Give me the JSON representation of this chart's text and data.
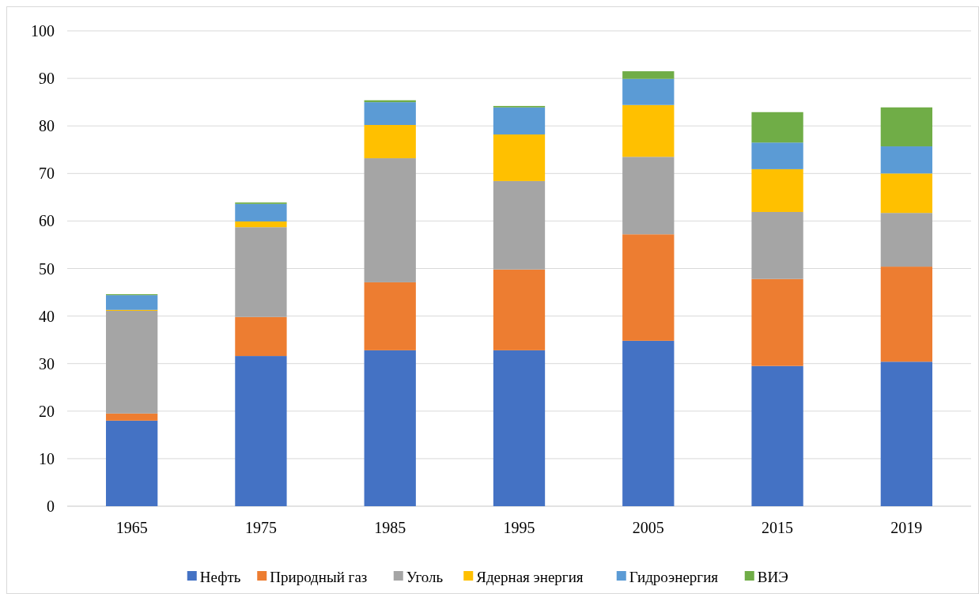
{
  "chart_data": {
    "type": "bar",
    "stacked": true,
    "categories": [
      "1965",
      "1975",
      "1985",
      "1995",
      "2005",
      "2015",
      "2019"
    ],
    "series": [
      {
        "name": "Нефть",
        "color": "#4472c4",
        "values": [
          18.0,
          31.6,
          32.8,
          32.8,
          34.8,
          29.5,
          30.4
        ]
      },
      {
        "name": "Природный газ",
        "color": "#ed7d31",
        "values": [
          1.5,
          8.2,
          14.3,
          17.0,
          22.4,
          18.3,
          20.0
        ]
      },
      {
        "name": "Уголь",
        "color": "#a5a5a5",
        "values": [
          21.6,
          18.9,
          26.1,
          18.6,
          16.3,
          14.1,
          11.3
        ]
      },
      {
        "name": "Ядерная энергия",
        "color": "#ffc000",
        "values": [
          0.2,
          1.2,
          7.0,
          9.8,
          10.9,
          9.0,
          8.3
        ]
      },
      {
        "name": "Гидроэнергия",
        "color": "#5b9bd5",
        "values": [
          3.1,
          3.7,
          4.8,
          5.7,
          5.5,
          5.6,
          5.7
        ]
      },
      {
        "name": "ВИЭ",
        "color": "#70ad47",
        "values": [
          0.2,
          0.3,
          0.4,
          0.3,
          1.6,
          6.4,
          8.2
        ]
      }
    ],
    "ylim": [
      0,
      100
    ],
    "yticks": [
      0,
      10,
      20,
      30,
      40,
      50,
      60,
      70,
      80,
      90,
      100
    ],
    "grid": "y",
    "legend": "bottom"
  }
}
